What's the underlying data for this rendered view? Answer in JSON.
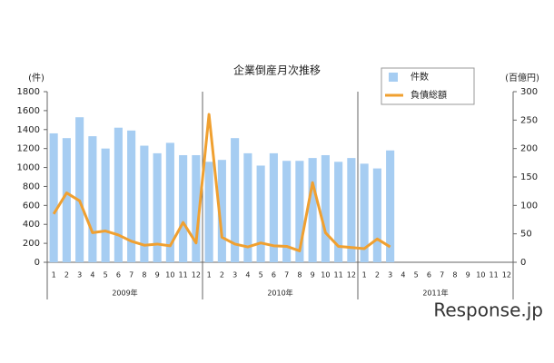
{
  "chart_data": {
    "type": "bar_line",
    "title": "企業倒産月次推移",
    "y_label": "(件)",
    "y2_label": "(百億円)",
    "categories": [
      "1",
      "2",
      "3",
      "4",
      "5",
      "6",
      "7",
      "8",
      "9",
      "10",
      "11",
      "12",
      "1",
      "2",
      "3",
      "4",
      "5",
      "6",
      "7",
      "8",
      "9",
      "10",
      "11",
      "12",
      "1",
      "2",
      "3",
      "4",
      "5",
      "6",
      "7",
      "8",
      "9",
      "10",
      "11",
      "12"
    ],
    "groups": [
      "2009年",
      "2010年",
      "2011年"
    ],
    "series": [
      {
        "name": "件数",
        "color": "#a6cdf2",
        "kind": "bar",
        "values": [
          1360,
          1310,
          1530,
          1330,
          1200,
          1420,
          1390,
          1230,
          1150,
          1260,
          1130,
          1130,
          1060,
          1080,
          1310,
          1150,
          1020,
          1150,
          1070,
          1070,
          1100,
          1130,
          1060,
          1100,
          1040,
          990,
          1180,
          null,
          null,
          null,
          null,
          null,
          null,
          null,
          null,
          null
        ]
      },
      {
        "name": "負債総額",
        "color": "#f0a030",
        "kind": "line",
        "axis": "y2",
        "values": [
          85,
          122,
          108,
          52,
          55,
          48,
          37,
          30,
          32,
          29,
          70,
          34,
          260,
          44,
          32,
          27,
          34,
          29,
          28,
          20,
          140,
          52,
          28,
          26,
          24,
          41,
          27,
          null,
          null,
          null,
          null,
          null,
          null,
          null,
          null,
          null
        ]
      }
    ],
    "ylim": [
      0,
      1800
    ],
    "yticks": [
      0,
      200,
      400,
      600,
      800,
      1000,
      1200,
      1400,
      1600,
      1800
    ],
    "y2lim": [
      0,
      300
    ],
    "y2ticks": [
      0,
      50,
      100,
      150,
      200,
      250,
      300
    ],
    "watermark": "Response.jp"
  }
}
